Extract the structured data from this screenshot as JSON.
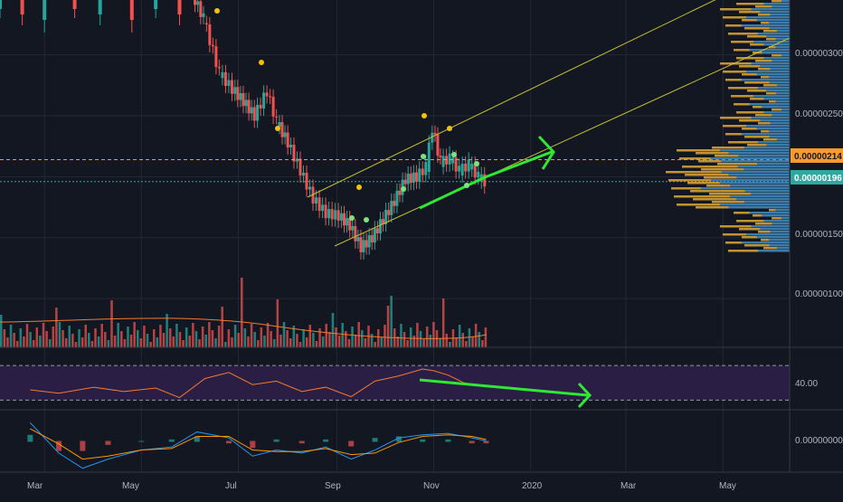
{
  "colors": {
    "background": "#131722",
    "grid": "#232836",
    "up": "#26a69a",
    "down": "#ef5350",
    "channel": "#c8c335",
    "arrow": "#2fe834",
    "volume_profile": "#d6a137",
    "volume_profile_alt": "#2e7ab8",
    "rsi_line": "#f57a2c",
    "rsi_band": "#2a1e44",
    "macd_line": "#2196f3",
    "signal_line": "#ff9800",
    "last_price_label": "#f79b2e",
    "current_price_label": "#2fa8a0",
    "axis_text": "#b2b5be",
    "marker": "#f2c200",
    "marker_alt": "#7fe27f"
  },
  "chart_data": [
    {
      "type": "candlestick",
      "panel": "price",
      "x_axis_labels": [
        "Mar",
        "May",
        "Jul",
        "Sep",
        "Nov",
        "2020",
        "Mar",
        "May"
      ],
      "y_axis_labels": [
        "0.00000300",
        "0.00000250",
        "0.00000150",
        "0.00000100"
      ],
      "ylim": [
        6e-07,
        3.45e-06
      ],
      "price_labels": [
        {
          "name": "last",
          "value": "0.00000214"
        },
        {
          "name": "current",
          "value": "0.00000196"
        }
      ],
      "series": [
        {
          "name": "close",
          "points": [
            [
              "Jun 01",
              3.55e-06
            ],
            [
              "Jun 10",
              3.3e-06
            ],
            [
              "Jun 20",
              2.85e-06
            ],
            [
              "Jun 28",
              2.72e-06
            ],
            [
              "Jul 05",
              2.62e-06
            ],
            [
              "Jul 12",
              2.5e-06
            ],
            [
              "Jul 20",
              2.7e-06
            ],
            [
              "Jul 26",
              2.45e-06
            ],
            [
              "Aug 02",
              2.28e-06
            ],
            [
              "Aug 10",
              2.05e-06
            ],
            [
              "Aug 18",
              1.82e-06
            ],
            [
              "Aug 26",
              1.7e-06
            ],
            [
              "Sep 03",
              1.68e-06
            ],
            [
              "Sep 10",
              1.6e-06
            ],
            [
              "Sep 17",
              1.42e-06
            ],
            [
              "Sep 24",
              1.5e-06
            ],
            [
              "Oct 01",
              1.65e-06
            ],
            [
              "Oct 08",
              1.8e-06
            ],
            [
              "Oct 15",
              1.98e-06
            ],
            [
              "Oct 22",
              2e-06
            ],
            [
              "Oct 28",
              2.08e-06
            ],
            [
              "Nov 01",
              2.4e-06
            ],
            [
              "Nov 06",
              2.12e-06
            ],
            [
              "Nov 12",
              2.15e-06
            ],
            [
              "Nov 18",
              2.05e-06
            ],
            [
              "Nov 24",
              2.1e-06
            ],
            [
              "Nov 30",
              2e-06
            ],
            [
              "Dec 04",
              1.96e-06
            ]
          ]
        }
      ],
      "annotations": [
        "ascending channel",
        "rising support arrow"
      ]
    },
    {
      "type": "bar",
      "panel": "volume",
      "series": [
        {
          "name": "volume",
          "values": []
        }
      ]
    },
    {
      "type": "line",
      "panel": "rsi",
      "y_axis_labels": [
        "40.00"
      ],
      "ylim": [
        20,
        90
      ],
      "bands": [
        70,
        30
      ],
      "series": [
        {
          "name": "rsi",
          "points": [
            [
              "Feb 20",
              42
            ],
            [
              "Mar 10",
              38
            ],
            [
              "Apr 01",
              45
            ],
            [
              "Apr 20",
              40
            ],
            [
              "May 10",
              44
            ],
            [
              "May 25",
              33
            ],
            [
              "Jun 10",
              55
            ],
            [
              "Jun 25",
              62
            ],
            [
              "Jul 10",
              48
            ],
            [
              "Jul 25",
              52
            ],
            [
              "Aug 10",
              40
            ],
            [
              "Aug 25",
              45
            ],
            [
              "Sep 10",
              34
            ],
            [
              "Sep 25",
              52
            ],
            [
              "Oct 10",
              58
            ],
            [
              "Oct 25",
              66
            ],
            [
              "Nov 01",
              64
            ],
            [
              "Nov 10",
              59
            ],
            [
              "Nov 20",
              50
            ],
            [
              "Dec 04",
              45
            ]
          ]
        }
      ],
      "annotations": [
        "falling RSI arrow"
      ]
    },
    {
      "type": "line",
      "panel": "macd",
      "y_axis_labels": [
        "0.00000000"
      ],
      "ylim": [
        -1,
        1
      ],
      "series": [
        {
          "name": "macd",
          "points": [
            [
              "Feb 20",
              0.6
            ],
            [
              "Mar 10",
              -0.4
            ],
            [
              "Mar 25",
              -0.9
            ],
            [
              "Apr 10",
              -0.6
            ],
            [
              "May 01",
              -0.3
            ],
            [
              "May 20",
              -0.2
            ],
            [
              "Jun 05",
              0.3
            ],
            [
              "Jun 25",
              0.1
            ],
            [
              "Jul 10",
              -0.5
            ],
            [
              "Jul 25",
              -0.3
            ],
            [
              "Aug 10",
              -0.4
            ],
            [
              "Aug 25",
              -0.2
            ],
            [
              "Sep 10",
              -0.6
            ],
            [
              "Sep 25",
              -0.3
            ],
            [
              "Oct 10",
              0.1
            ],
            [
              "Oct 25",
              0.2
            ],
            [
              "Nov 10",
              0.25
            ],
            [
              "Nov 25",
              0.1
            ],
            [
              "Dec 04",
              0.0
            ]
          ]
        },
        {
          "name": "signal",
          "points": [
            [
              "Feb 20",
              0.4
            ],
            [
              "Mar 10",
              -0.1
            ],
            [
              "Mar 25",
              -0.6
            ],
            [
              "Apr 10",
              -0.5
            ],
            [
              "May 01",
              -0.3
            ],
            [
              "May 20",
              -0.25
            ],
            [
              "Jun 05",
              0.15
            ],
            [
              "Jun 25",
              0.15
            ],
            [
              "Jul 10",
              -0.3
            ],
            [
              "Jul 25",
              -0.35
            ],
            [
              "Aug 10",
              -0.35
            ],
            [
              "Aug 25",
              -0.25
            ],
            [
              "Sep 10",
              -0.45
            ],
            [
              "Sep 25",
              -0.4
            ],
            [
              "Oct 10",
              -0.05
            ],
            [
              "Oct 25",
              0.15
            ],
            [
              "Nov 10",
              0.2
            ],
            [
              "Nov 25",
              0.15
            ],
            [
              "Dec 04",
              0.05
            ]
          ]
        }
      ]
    }
  ]
}
